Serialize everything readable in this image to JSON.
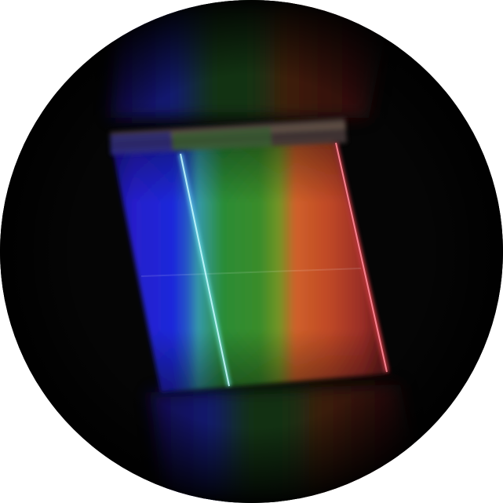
{
  "photo": {
    "subject": "spectroscope-view",
    "colors": {
      "background": "#050505",
      "violet": "#2a1cd6",
      "blue": "#1f2cf0",
      "cyan_line": "#7ff5ff",
      "green": "#2f9a3a",
      "yellow_green": "#7fa22a",
      "orange": "#e46a2e",
      "red": "#c22a2c",
      "red_line": "#ff4a5a"
    }
  }
}
